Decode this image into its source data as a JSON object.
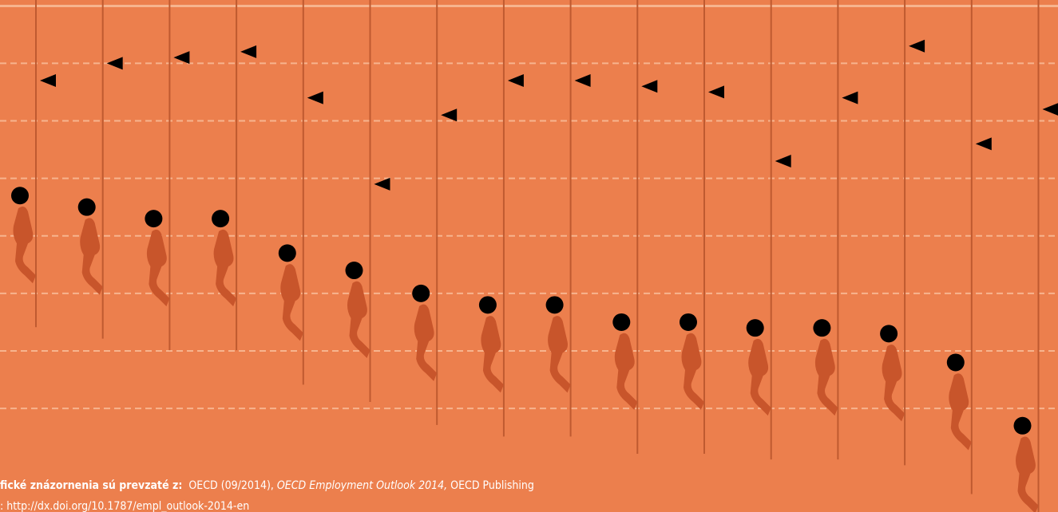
{
  "chart_data": {
    "type": "rope",
    "categories": [
      null,
      null,
      null,
      null,
      null,
      null,
      null,
      null,
      null,
      null,
      null,
      null,
      null,
      null,
      null,
      null
    ],
    "ylim": [
      -1.8,
      7.1
    ],
    "yticks": [
      0,
      1,
      2,
      3,
      4,
      5,
      6
    ],
    "grid": true,
    "background": "#ec7f4d",
    "grid_color": "#f7b48e",
    "rope_color": "#bf5a30",
    "figure_color": "#c8552b",
    "series": [
      {
        "marker": "circle",
        "color": "#000000",
        "values": [
          3.7,
          3.5,
          3.3,
          3.3,
          2.7,
          2.4,
          2.0,
          1.8,
          1.8,
          1.5,
          1.5,
          1.4,
          1.4,
          1.3,
          0.8,
          -0.3
        ]
      },
      {
        "marker": "flag",
        "color": "#000000",
        "values": [
          5.7,
          6.0,
          6.1,
          6.2,
          5.4,
          3.9,
          5.1,
          5.7,
          5.7,
          5.6,
          5.5,
          4.3,
          5.4,
          6.3,
          4.6,
          5.2
        ]
      }
    ]
  },
  "source": {
    "label": "fické znázornenia sú prevzaté z:",
    "text1": "OECD (09/2014),",
    "title": "OECD Employment Outlook 2014,",
    "text2": "OECD Publishing",
    "link": ": http://dx.doi.org/10.1787/empl_outlook-2014-en"
  }
}
